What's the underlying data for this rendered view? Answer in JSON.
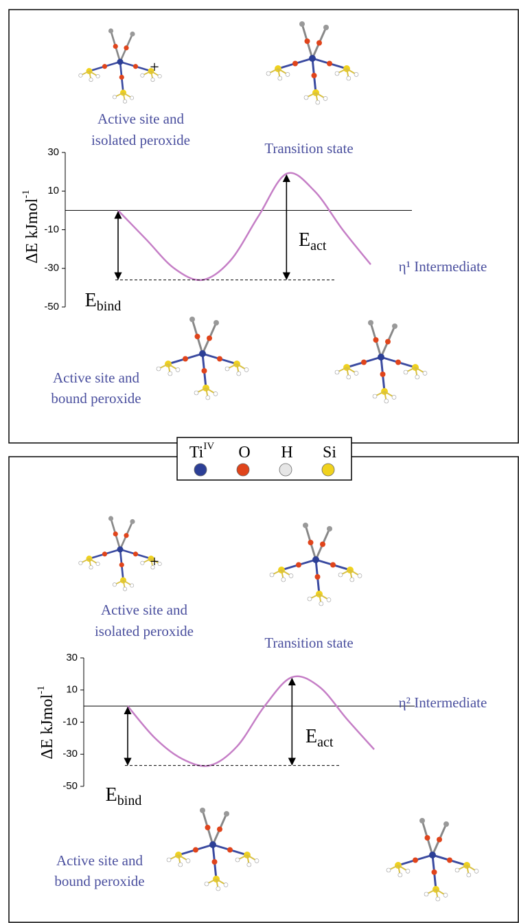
{
  "chart_data": [
    {
      "type": "line",
      "y_label": {
        "text": "ΔE kJmol",
        "sup": "-1"
      },
      "ylim": [
        -50,
        30
      ],
      "yticks": [
        30,
        10,
        -10,
        -30,
        -50
      ],
      "categories": [
        null,
        null,
        null,
        null,
        null,
        null,
        null,
        null,
        null,
        null
      ],
      "series": [
        {
          "color": "#c57ec6",
          "values": [
            0,
            -15,
            -30,
            -36,
            -26,
            -3,
            19,
            10,
            -10,
            -28
          ]
        }
      ],
      "annotations": {
        "binding": {
          "text": "E",
          "sub": "bind"
        },
        "activation": {
          "text": "E",
          "sub": "act"
        }
      },
      "labels": {
        "reactant": [
          "Active site and",
          "isolated peroxide"
        ],
        "transition": "Transition state",
        "intermediate": "η¹ Intermediate",
        "bound": [
          "Active site and",
          "bound peroxide"
        ]
      }
    },
    {
      "type": "line",
      "y_label": {
        "text": "ΔE kJmol",
        "sup": "-1"
      },
      "ylim": [
        -50,
        30
      ],
      "yticks": [
        30,
        10,
        -10,
        -30,
        -50
      ],
      "categories": [
        null,
        null,
        null,
        null,
        null,
        null,
        null,
        null,
        null,
        null
      ],
      "series": [
        {
          "color": "#c57ec6",
          "values": [
            0,
            -20,
            -33,
            -37,
            -25,
            0,
            18,
            12,
            -8,
            -27
          ]
        }
      ],
      "annotations": {
        "binding": {
          "text": "E",
          "sub": "bind"
        },
        "activation": {
          "text": "E",
          "sub": "act"
        }
      },
      "labels": {
        "reactant": [
          "Active site and",
          "isolated peroxide"
        ],
        "transition": "Transition state",
        "intermediate": "η² Intermediate",
        "bound": [
          "Active site and",
          "bound peroxide"
        ]
      }
    }
  ],
  "legend": [
    {
      "label": "Ti",
      "sup": "IV",
      "color": "#2c3f96"
    },
    {
      "label": "O",
      "color": "#e0441b"
    },
    {
      "label": "H",
      "color": "#e6e6e6"
    },
    {
      "label": "Si",
      "color": "#f0d21e"
    }
  ],
  "plus": "+"
}
